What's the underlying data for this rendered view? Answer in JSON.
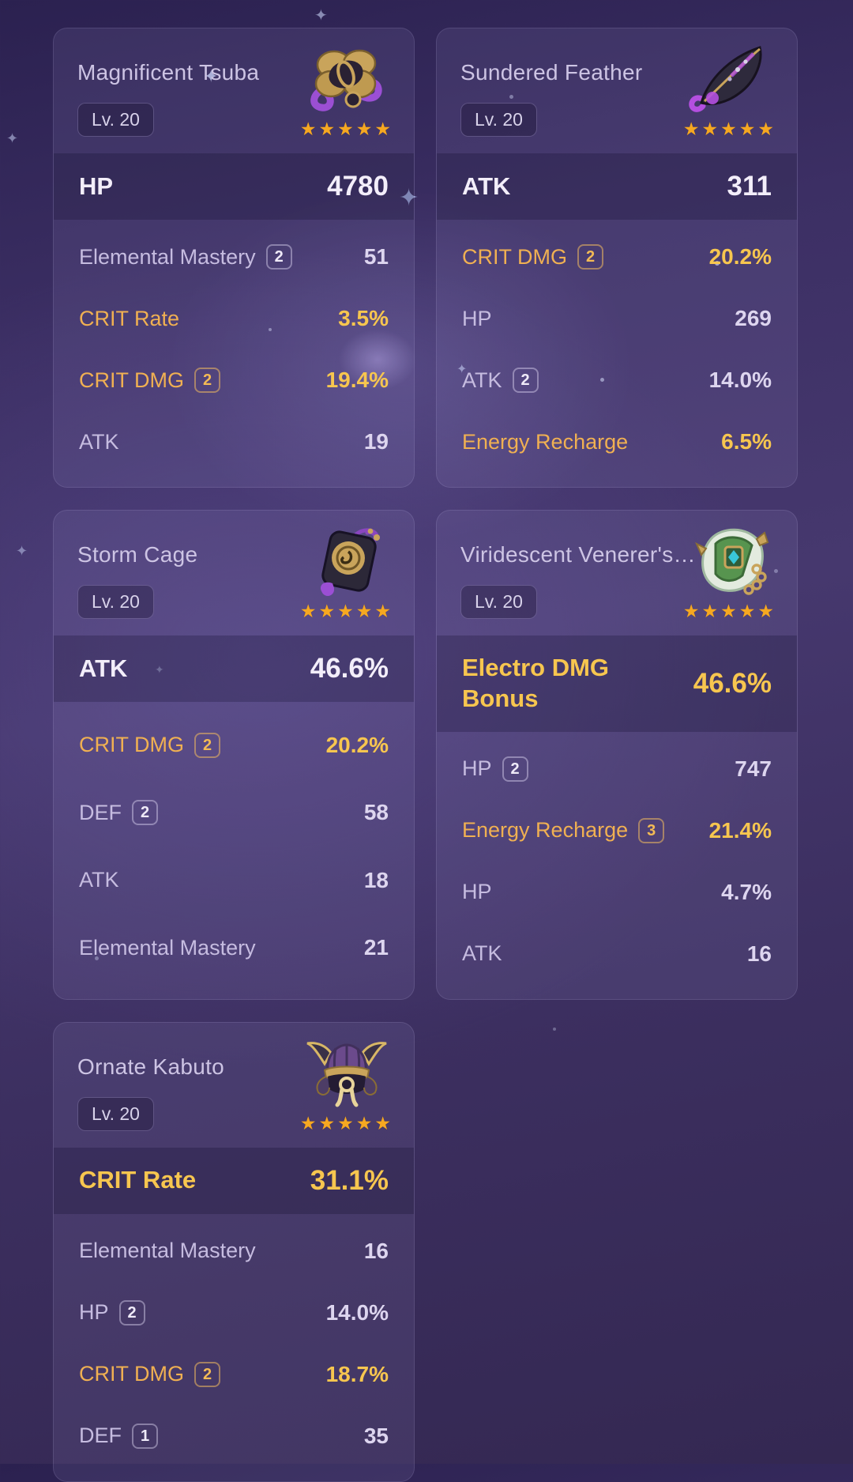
{
  "colors": {
    "gold_label": "#f0b052",
    "gold_value": "#f7c64f",
    "star": "#f6a821",
    "card_background": "rgba(186,172,232,0.10)",
    "main_band_background": "rgba(14,7,38,0.24)"
  },
  "cards": [
    {
      "name": "Magnificent Tsuba",
      "level": "Lv. 20",
      "stars": 5,
      "icon": "flower-artifact-icon",
      "main_stat": {
        "label": "HP",
        "value": "4780",
        "gold": false
      },
      "substats": [
        {
          "label": "Elemental Mastery",
          "rolls": "2",
          "value": "51",
          "gold": false
        },
        {
          "label": "CRIT Rate",
          "rolls": null,
          "value": "3.5%",
          "gold": true
        },
        {
          "label": "CRIT DMG",
          "rolls": "2",
          "value": "19.4%",
          "gold": true
        },
        {
          "label": "ATK",
          "rolls": null,
          "value": "19",
          "gold": false
        }
      ]
    },
    {
      "name": "Sundered Feather",
      "level": "Lv. 20",
      "stars": 5,
      "icon": "feather-artifact-icon",
      "main_stat": {
        "label": "ATK",
        "value": "311",
        "gold": false
      },
      "substats": [
        {
          "label": "CRIT DMG",
          "rolls": "2",
          "value": "20.2%",
          "gold": true
        },
        {
          "label": "HP",
          "rolls": null,
          "value": "269",
          "gold": false
        },
        {
          "label": "ATK",
          "rolls": "2",
          "value": "14.0%",
          "gold": false
        },
        {
          "label": "Energy Recharge",
          "rolls": null,
          "value": "6.5%",
          "gold": true
        }
      ]
    },
    {
      "name": "Storm Cage",
      "level": "Lv. 20",
      "stars": 5,
      "icon": "sands-artifact-icon",
      "main_stat": {
        "label": "ATK",
        "value": "46.6%",
        "gold": false
      },
      "substats": [
        {
          "label": "CRIT DMG",
          "rolls": "2",
          "value": "20.2%",
          "gold": true
        },
        {
          "label": "DEF",
          "rolls": "2",
          "value": "58",
          "gold": false
        },
        {
          "label": "ATK",
          "rolls": null,
          "value": "18",
          "gold": false
        },
        {
          "label": "Elemental Mastery",
          "rolls": null,
          "value": "21",
          "gold": false
        }
      ]
    },
    {
      "name": "Viridescent Venerer's…",
      "level": "Lv. 20",
      "stars": 5,
      "icon": "goblet-artifact-icon",
      "main_stat": {
        "label": "Electro DMG Bonus",
        "value": "46.6%",
        "gold": true
      },
      "substats": [
        {
          "label": "HP",
          "rolls": "2",
          "value": "747",
          "gold": false
        },
        {
          "label": "Energy Recharge",
          "rolls": "3",
          "value": "21.4%",
          "gold": true
        },
        {
          "label": "HP",
          "rolls": null,
          "value": "4.7%",
          "gold": false
        },
        {
          "label": "ATK",
          "rolls": null,
          "value": "16",
          "gold": false
        }
      ]
    },
    {
      "name": "Ornate Kabuto",
      "level": "Lv. 20",
      "stars": 5,
      "icon": "helmet-artifact-icon",
      "main_stat": {
        "label": "CRIT Rate",
        "value": "31.1%",
        "gold": true
      },
      "substats": [
        {
          "label": "Elemental Mastery",
          "rolls": null,
          "value": "16",
          "gold": false
        },
        {
          "label": "HP",
          "rolls": "2",
          "value": "14.0%",
          "gold": false
        },
        {
          "label": "CRIT DMG",
          "rolls": "2",
          "value": "18.7%",
          "gold": true
        },
        {
          "label": "DEF",
          "rolls": "1",
          "value": "35",
          "gold": false
        }
      ]
    }
  ]
}
